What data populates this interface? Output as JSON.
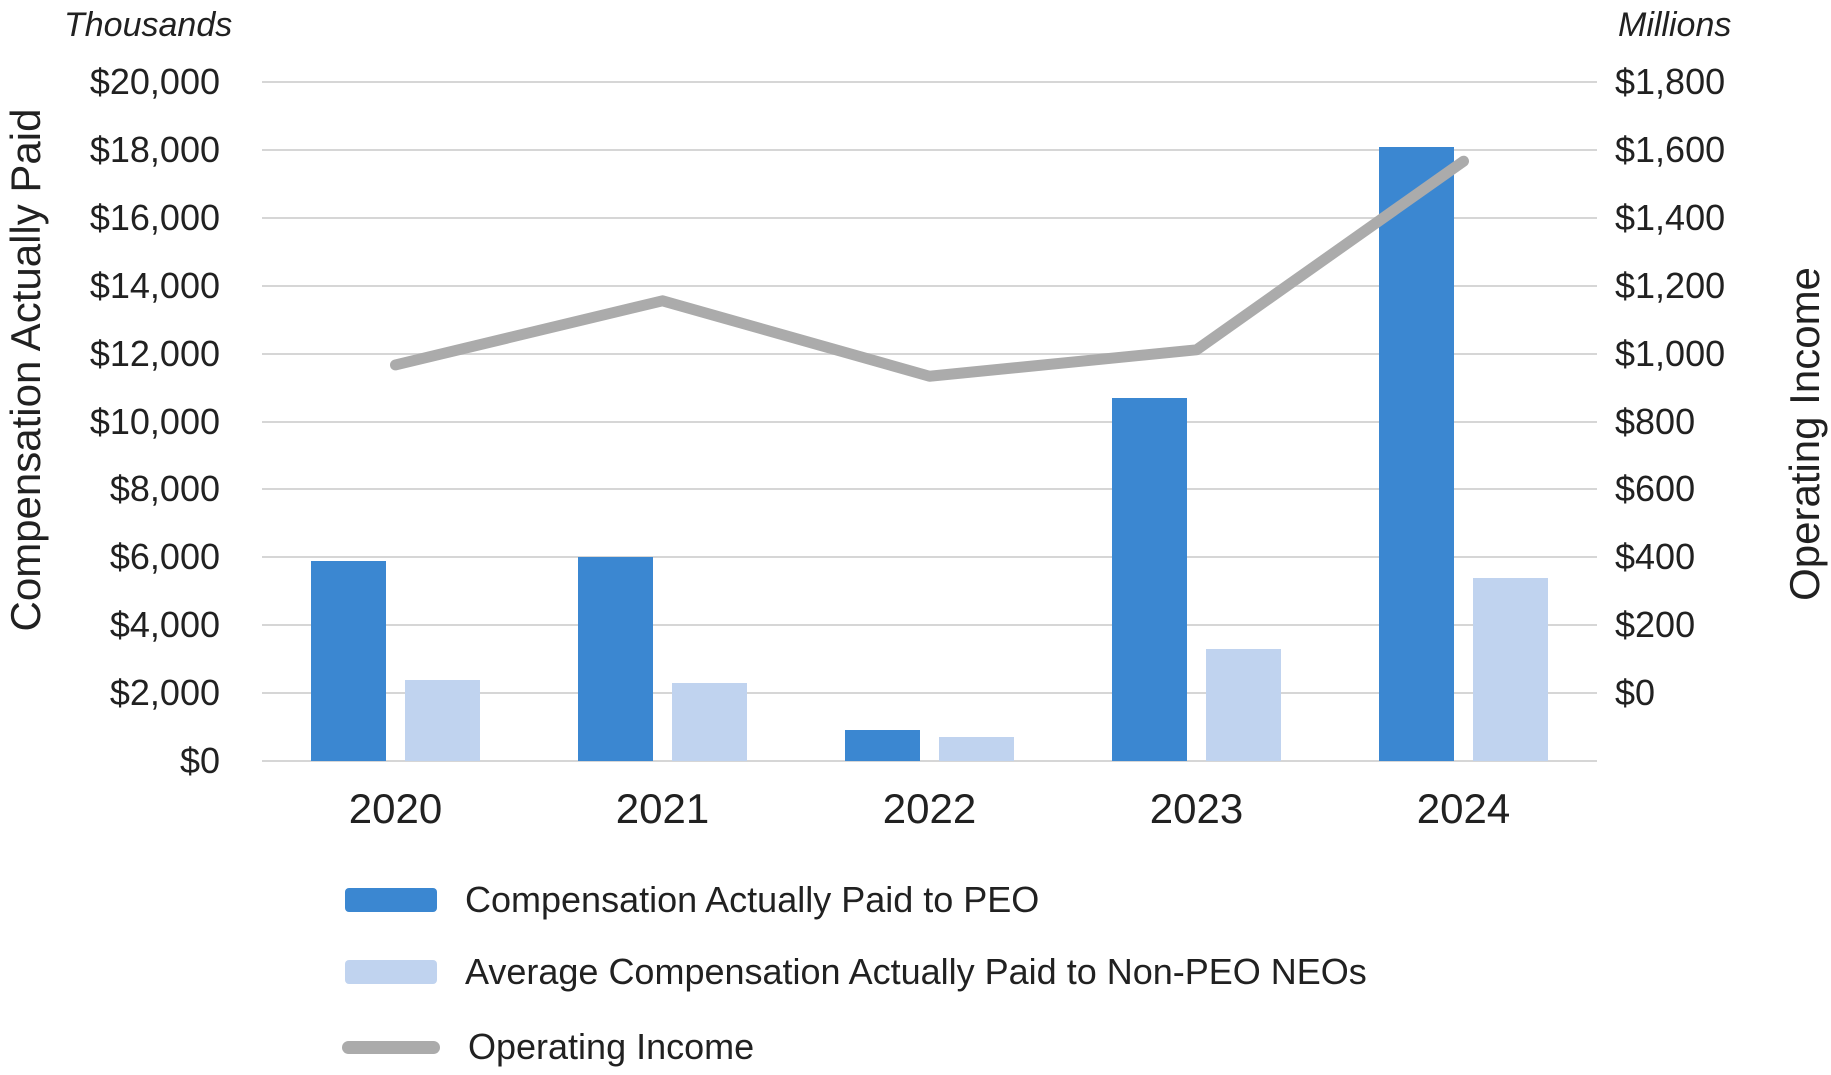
{
  "chart_data": {
    "type": "combo_bar_line",
    "title": "",
    "categories": [
      "2020",
      "2021",
      "2022",
      "2023",
      "2024"
    ],
    "series": [
      {
        "name": "Compensation Actually Paid to PEO",
        "type": "bar",
        "axis": "left",
        "color": "#3b87d1",
        "values": [
          5900,
          6000,
          900,
          10700,
          18100
        ]
      },
      {
        "name": "Average Compensation Actually Paid to Non-PEO NEOs",
        "type": "bar",
        "axis": "left",
        "color": "#c0d3ef",
        "values": [
          2400,
          2300,
          700,
          3300,
          5400
        ]
      },
      {
        "name": "Operating Income",
        "type": "line",
        "axis": "right",
        "color": "#ababab",
        "values": [
          1050,
          1220,
          1020,
          1090,
          1590
        ]
      }
    ],
    "left_axis": {
      "unit_label": "Thousands",
      "title": "Compensation Actually Paid",
      "min": 0,
      "max": 20000,
      "tick_step": 2000,
      "tick_labels_top_to_bottom": [
        "$20,000",
        "$18,000",
        "$16,000",
        "$14,000",
        "$12,000",
        "$10,000",
        "$8,000",
        "$6,000",
        "$4,000",
        "$2,000",
        "$0"
      ]
    },
    "right_axis": {
      "unit_label": "Millions",
      "title": "Operating Income",
      "min": 0,
      "max": 1800,
      "tick_step": 200,
      "tick_labels_top_to_bottom": [
        "$1,800",
        "$1,600",
        "$1,400",
        "$1,200",
        "$1,000",
        "$800",
        "$600",
        "$400",
        "$200",
        "$0"
      ]
    },
    "grid": true,
    "gridline_color": "#d6d6d6",
    "legend_position": "bottom-left"
  }
}
